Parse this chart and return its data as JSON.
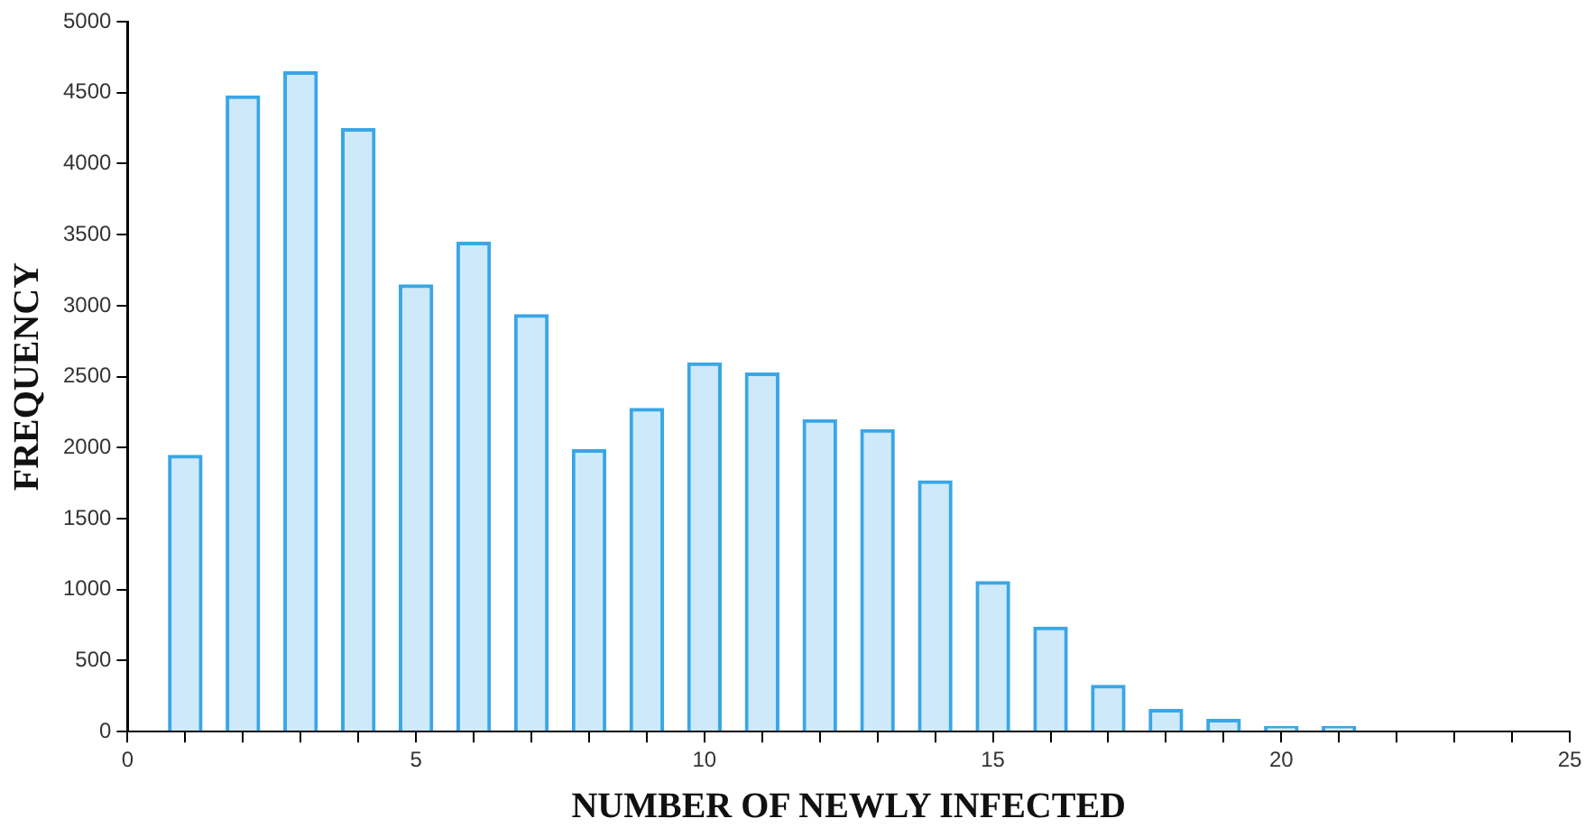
{
  "chart_data": {
    "type": "bar",
    "xlabel": "NUMBER OF NEWLY INFECTED",
    "ylabel": "FREQUENCY",
    "x": [
      1,
      2,
      3,
      4,
      5,
      6,
      7,
      8,
      9,
      10,
      11,
      12,
      13,
      14,
      15,
      16,
      17,
      18,
      19,
      20,
      21
    ],
    "values": [
      1950,
      4480,
      4650,
      4250,
      3150,
      3450,
      2940,
      1990,
      2280,
      2600,
      2530,
      2200,
      2130,
      1770,
      1060,
      740,
      330,
      160,
      90,
      40,
      40
    ],
    "color": "#3aa6e6",
    "xlim": [
      0,
      25
    ],
    "xticks": [
      0,
      {
        "value": 1,
        "label": null
      },
      {
        "value": 2,
        "label": null
      },
      {
        "value": 3,
        "label": null
      },
      {
        "value": 4,
        "label": null
      },
      5,
      {
        "value": 6,
        "label": null
      },
      {
        "value": 7,
        "label": null
      },
      {
        "value": 8,
        "label": null
      },
      {
        "value": 9,
        "label": null
      },
      10,
      {
        "value": 11,
        "label": null
      },
      {
        "value": 12,
        "label": null
      },
      {
        "value": 13,
        "label": null
      },
      {
        "value": 14,
        "label": null
      },
      15,
      {
        "value": 16,
        "label": null
      },
      {
        "value": 17,
        "label": null
      },
      {
        "value": 18,
        "label": null
      },
      {
        "value": 19,
        "label": null
      },
      20,
      {
        "value": 21,
        "label": null
      },
      {
        "value": 22,
        "label": null
      },
      {
        "value": 23,
        "label": null
      },
      {
        "value": 24,
        "label": null
      },
      25
    ],
    "ylim": [
      0,
      5000
    ],
    "yticks": [
      0,
      500,
      1000,
      1500,
      2000,
      2500,
      3000,
      3500,
      4000,
      4500,
      5000
    ],
    "grid": false,
    "legend": false
  }
}
